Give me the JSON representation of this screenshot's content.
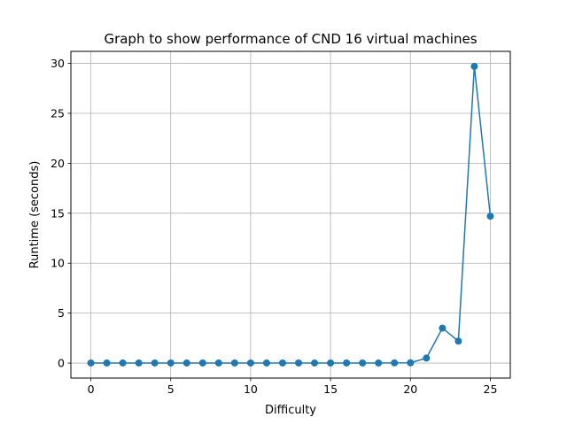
{
  "chart_data": {
    "type": "line",
    "title": "Graph to show performance of CND 16 virtual machines",
    "xlabel": "Difficulty",
    "ylabel": "Runtime (seconds)",
    "xlim": [
      -1.25,
      26.25
    ],
    "ylim": [
      -1.5,
      31.2
    ],
    "xticks": [
      0,
      5,
      10,
      15,
      20,
      25
    ],
    "yticks": [
      0,
      5,
      10,
      15,
      20,
      25,
      30
    ],
    "grid": true,
    "marker": "circle",
    "color": "#1f77b4",
    "series": [
      {
        "x": [
          0,
          1,
          2,
          3,
          4,
          5,
          6,
          7,
          8,
          9,
          10,
          11,
          12,
          13,
          14,
          15,
          16,
          17,
          18,
          19,
          20,
          21,
          22,
          23,
          24,
          25
        ],
        "y": [
          0.01,
          0.01,
          0.01,
          0.01,
          0.01,
          0.01,
          0.01,
          0.01,
          0.01,
          0.01,
          0.01,
          0.01,
          0.01,
          0.01,
          0.01,
          0.01,
          0.01,
          0.01,
          0.01,
          0.02,
          0.03,
          0.5,
          3.5,
          2.2,
          29.7,
          14.7
        ]
      }
    ]
  }
}
